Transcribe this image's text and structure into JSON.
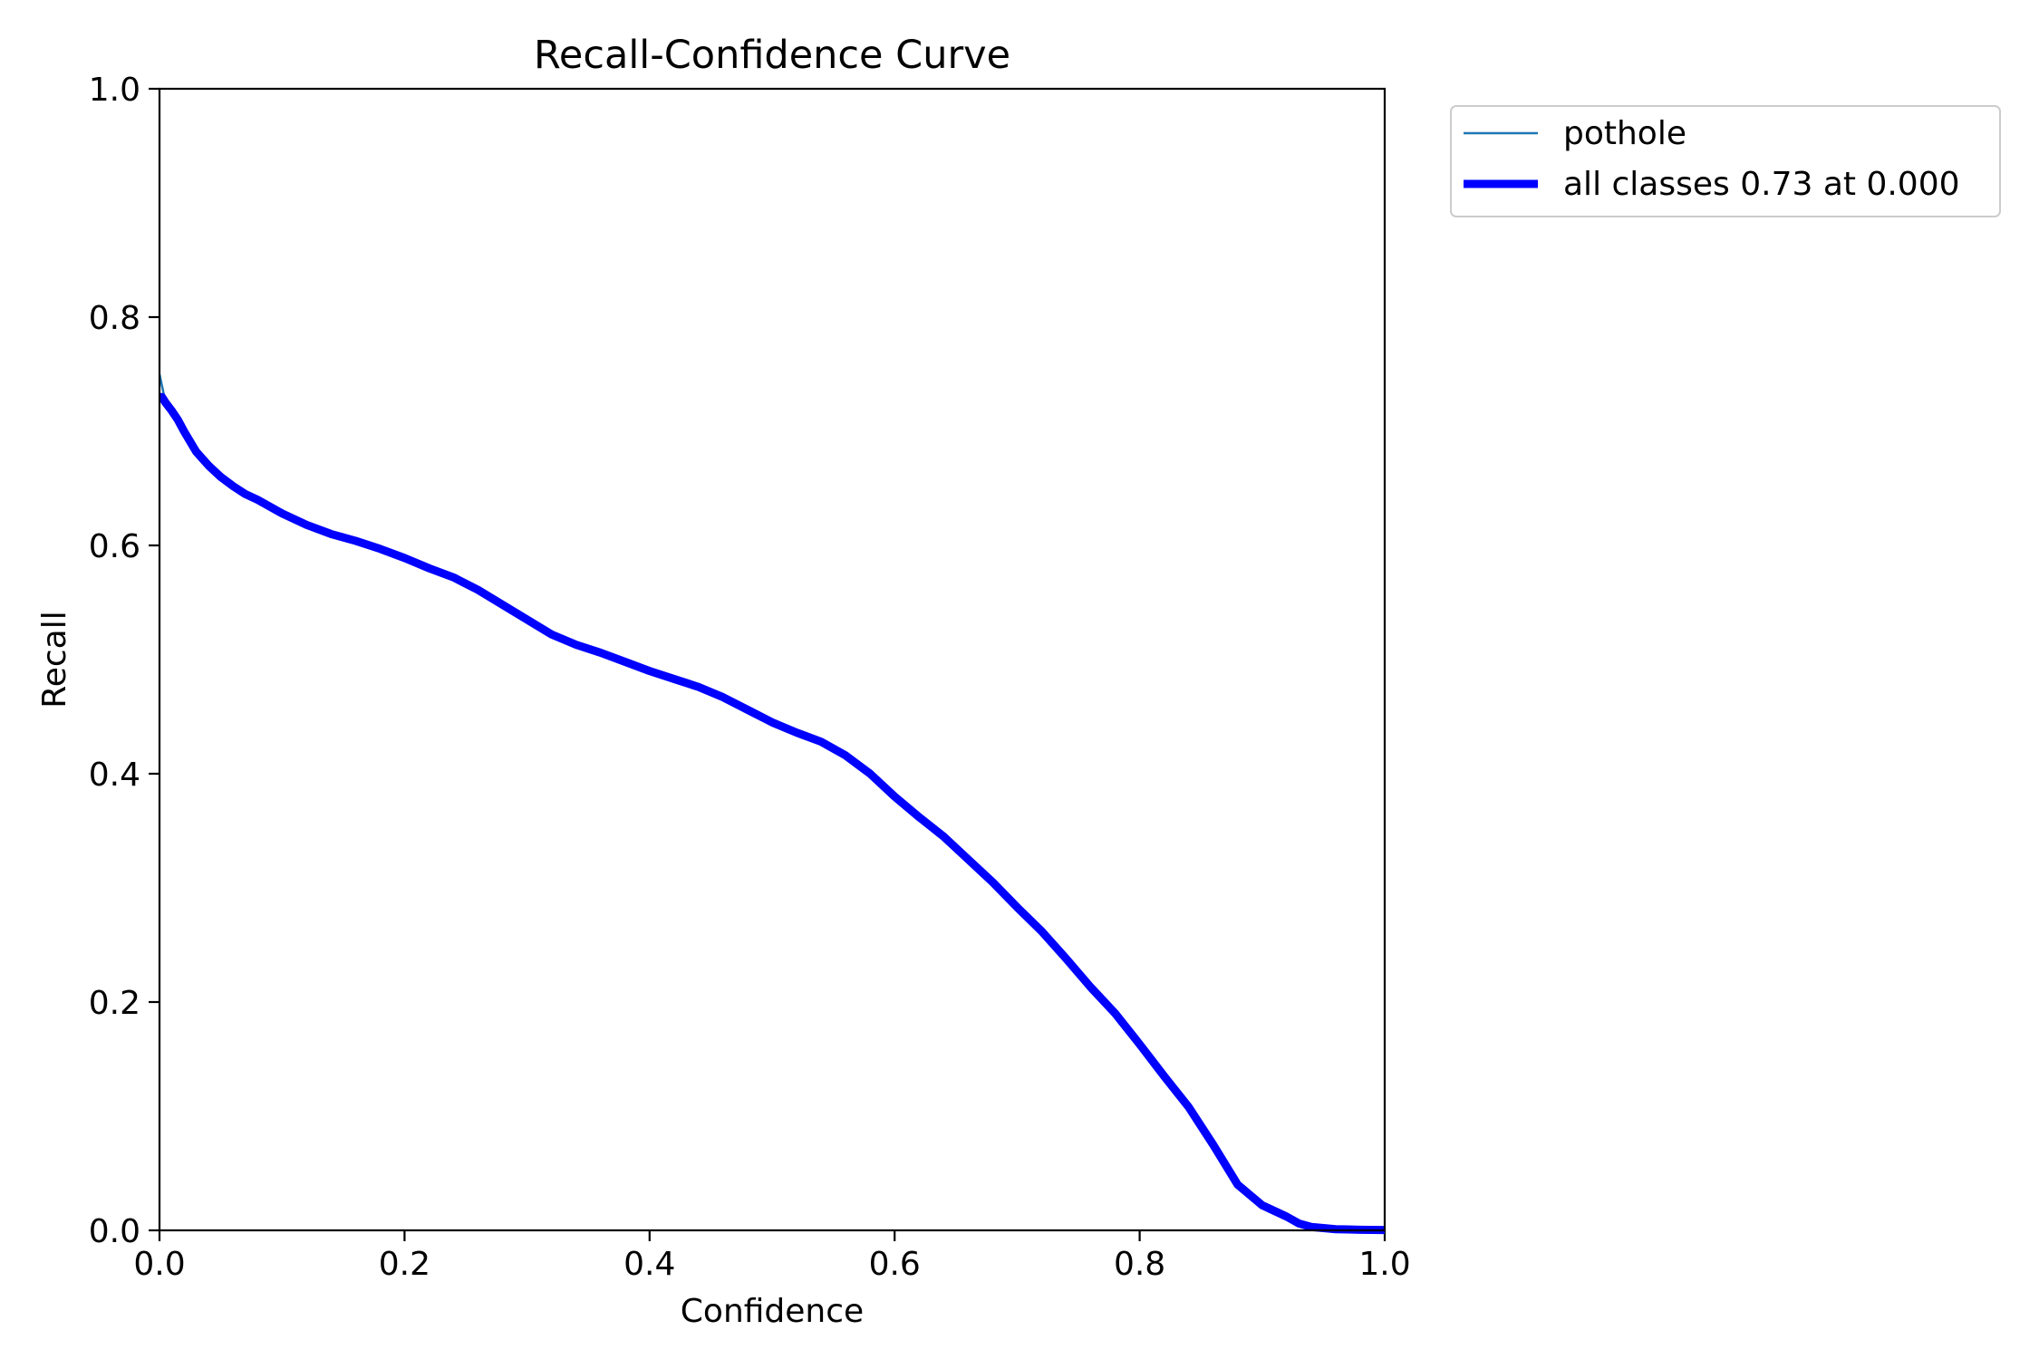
{
  "chart_data": {
    "type": "line",
    "title": "Recall-Confidence Curve",
    "xlabel": "Confidence",
    "ylabel": "Recall",
    "xlim": [
      0,
      1
    ],
    "ylim": [
      0,
      1
    ],
    "xticks": [
      "0.0",
      "0.2",
      "0.4",
      "0.6",
      "0.8",
      "1.0"
    ],
    "yticks": [
      "0.0",
      "0.2",
      "0.4",
      "0.6",
      "0.8",
      "1.0"
    ],
    "grid": false,
    "legend_position": "outside-top-right",
    "series": [
      {
        "name": "pothole",
        "color": "#1f77b4",
        "linewidth": "thin",
        "x": [
          0.0,
          0.002,
          0.005,
          0.01,
          0.015,
          0.02,
          0.03,
          0.04,
          0.05,
          0.06,
          0.07,
          0.08,
          0.1,
          0.12,
          0.14,
          0.16,
          0.18,
          0.2,
          0.22,
          0.24,
          0.26,
          0.28,
          0.3,
          0.32,
          0.34,
          0.36,
          0.38,
          0.4,
          0.42,
          0.44,
          0.46,
          0.48,
          0.5,
          0.52,
          0.54,
          0.56,
          0.58,
          0.6,
          0.62,
          0.64,
          0.66,
          0.68,
          0.7,
          0.72,
          0.74,
          0.76,
          0.78,
          0.8,
          0.82,
          0.84,
          0.86,
          0.88,
          0.9,
          0.92,
          0.93,
          0.94,
          0.95,
          0.96,
          0.97,
          0.98,
          1.0
        ],
        "y": [
          0.75,
          0.74,
          0.725,
          0.718,
          0.71,
          0.7,
          0.682,
          0.67,
          0.66,
          0.652,
          0.645,
          0.64,
          0.628,
          0.618,
          0.61,
          0.604,
          0.597,
          0.589,
          0.58,
          0.572,
          0.561,
          0.548,
          0.535,
          0.522,
          0.513,
          0.506,
          0.498,
          0.49,
          0.483,
          0.476,
          0.467,
          0.456,
          0.445,
          0.436,
          0.428,
          0.416,
          0.4,
          0.38,
          0.362,
          0.345,
          0.325,
          0.305,
          0.283,
          0.262,
          0.238,
          0.213,
          0.19,
          0.163,
          0.135,
          0.108,
          0.075,
          0.04,
          0.022,
          0.012,
          0.006,
          0.003,
          0.002,
          0.001,
          0.0008,
          0.0005,
          0.0003
        ]
      },
      {
        "name": "all classes 0.73 at 0.000",
        "color": "#0000ff",
        "linewidth": "thick",
        "x": [
          0.0,
          0.002,
          0.005,
          0.01,
          0.015,
          0.02,
          0.03,
          0.04,
          0.05,
          0.06,
          0.07,
          0.08,
          0.1,
          0.12,
          0.14,
          0.16,
          0.18,
          0.2,
          0.22,
          0.24,
          0.26,
          0.28,
          0.3,
          0.32,
          0.34,
          0.36,
          0.38,
          0.4,
          0.42,
          0.44,
          0.46,
          0.48,
          0.5,
          0.52,
          0.54,
          0.56,
          0.58,
          0.6,
          0.62,
          0.64,
          0.66,
          0.68,
          0.7,
          0.72,
          0.74,
          0.76,
          0.78,
          0.8,
          0.82,
          0.84,
          0.86,
          0.88,
          0.9,
          0.92,
          0.93,
          0.94,
          0.95,
          0.96,
          0.97,
          0.98,
          1.0
        ],
        "y": [
          0.73,
          0.73,
          0.725,
          0.718,
          0.71,
          0.7,
          0.682,
          0.67,
          0.66,
          0.652,
          0.645,
          0.64,
          0.628,
          0.618,
          0.61,
          0.604,
          0.597,
          0.589,
          0.58,
          0.572,
          0.561,
          0.548,
          0.535,
          0.522,
          0.513,
          0.506,
          0.498,
          0.49,
          0.483,
          0.476,
          0.467,
          0.456,
          0.445,
          0.436,
          0.428,
          0.416,
          0.4,
          0.38,
          0.362,
          0.345,
          0.325,
          0.305,
          0.283,
          0.262,
          0.238,
          0.213,
          0.19,
          0.163,
          0.135,
          0.108,
          0.075,
          0.04,
          0.022,
          0.012,
          0.006,
          0.003,
          0.002,
          0.001,
          0.0008,
          0.0005,
          0.0003
        ]
      }
    ]
  }
}
